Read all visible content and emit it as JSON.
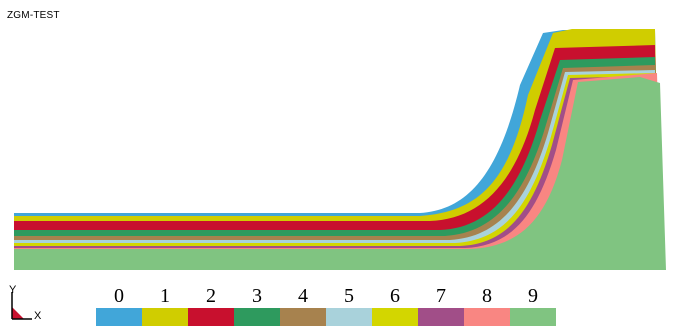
{
  "window": {
    "title": "ZGM-TEST"
  },
  "axes": {
    "y_label": "Y",
    "x_label": "X"
  },
  "legend": {
    "items": [
      {
        "label": "0",
        "color": "#41a6d9"
      },
      {
        "label": "1",
        "color": "#d0cd00"
      },
      {
        "label": "2",
        "color": "#c8102e"
      },
      {
        "label": "3",
        "color": "#2e9a5e"
      },
      {
        "label": "4",
        "color": "#a7824e"
      },
      {
        "label": "5",
        "color": "#a9d2db"
      },
      {
        "label": "6",
        "color": "#d3d600"
      },
      {
        "label": "7",
        "color": "#a14e88"
      },
      {
        "label": "8",
        "color": "#f98682"
      },
      {
        "label": "9",
        "color": "#80c481"
      }
    ]
  }
}
